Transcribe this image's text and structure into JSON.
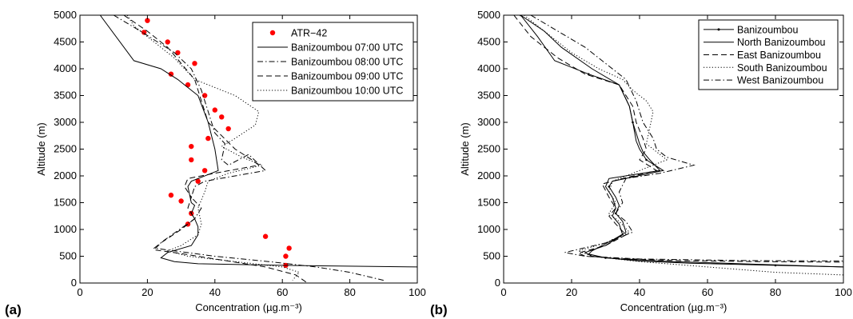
{
  "panels": [
    {
      "label": "(a)"
    },
    {
      "label": "(b)"
    }
  ],
  "chart_data": [
    {
      "type": "line",
      "panel_label": "(a)",
      "xlabel": "Concentration (µg.m⁻³)",
      "ylabel": "Altitude (m)",
      "xlim": [
        0,
        100
      ],
      "ylim": [
        0,
        5000
      ],
      "xticks": [
        0,
        20,
        40,
        60,
        80,
        100
      ],
      "yticks": [
        0,
        500,
        1000,
        1500,
        2000,
        2500,
        3000,
        3500,
        4000,
        4500,
        5000
      ],
      "grid": false,
      "legend_position": "top-right",
      "series": [
        {
          "name": "ATR−42",
          "style": "marker",
          "color": "#ff0000",
          "x": [
            20,
            19,
            26,
            29,
            27,
            34,
            32,
            37,
            40,
            42,
            44,
            38,
            33,
            33,
            37,
            35,
            27,
            30,
            33,
            32,
            55,
            62,
            61,
            61
          ],
          "y": [
            4900,
            4680,
            4500,
            4300,
            3900,
            4100,
            3700,
            3500,
            3230,
            3100,
            2880,
            2700,
            2550,
            2300,
            2100,
            1900,
            1640,
            1530,
            1300,
            1100,
            870,
            650,
            500,
            330
          ]
        },
        {
          "name": "Banizoumbou 07:00 UTC",
          "style": "solid",
          "color": "#000000",
          "x": [
            6,
            16,
            24,
            29,
            31,
            35,
            38,
            40,
            41,
            33,
            32,
            33,
            34,
            33,
            34,
            35,
            35,
            33,
            26,
            24,
            28,
            35,
            60,
            100
          ],
          "y": [
            5000,
            4150,
            4000,
            3800,
            3700,
            3500,
            3000,
            2500,
            2100,
            1900,
            1800,
            1500,
            1450,
            1300,
            1200,
            1050,
            900,
            700,
            570,
            470,
            400,
            360,
            330,
            300
          ]
        },
        {
          "name": "Banizoumbou 08:00 UTC",
          "style": "dashdot",
          "color": "#000000",
          "x": [
            10,
            18,
            28,
            33,
            36,
            38,
            40,
            43,
            42,
            44,
            50,
            55,
            46,
            37,
            34,
            33,
            36,
            34,
            25,
            22,
            28,
            40,
            56,
            70,
            80,
            90
          ],
          "y": [
            5000,
            4700,
            4300,
            4000,
            3600,
            3200,
            2800,
            2600,
            2300,
            2200,
            2400,
            2100,
            2000,
            1900,
            1800,
            1600,
            1400,
            1200,
            800,
            650,
            600,
            500,
            400,
            300,
            200,
            50
          ]
        },
        {
          "name": "Banizoumbou 09:00 UTC",
          "style": "dashed",
          "color": "#000000",
          "x": [
            13,
            20,
            26,
            30,
            34,
            36,
            38,
            42,
            46,
            51,
            53,
            40,
            32,
            31,
            33,
            32,
            34,
            30,
            24,
            22,
            30,
            40,
            55,
            64,
            67
          ],
          "y": [
            5000,
            4700,
            4400,
            4100,
            3800,
            3400,
            3000,
            2750,
            2500,
            2300,
            2200,
            2050,
            1950,
            1800,
            1600,
            1400,
            1200,
            1000,
            750,
            620,
            550,
            450,
            300,
            150,
            20
          ]
        },
        {
          "name": "Banizoumbou 10:00 UTC",
          "style": "dotted",
          "color": "#000000",
          "x": [
            14,
            16,
            22,
            28,
            34,
            46,
            53,
            52,
            46,
            42,
            48,
            54,
            44,
            38,
            37,
            35,
            36,
            35,
            30,
            26,
            32,
            46,
            60,
            65,
            63
          ],
          "y": [
            5000,
            4800,
            4500,
            4200,
            3800,
            3500,
            3200,
            2950,
            2700,
            2550,
            2350,
            2200,
            2050,
            1900,
            1700,
            1400,
            1100,
            900,
            700,
            600,
            500,
            400,
            300,
            200,
            50
          ]
        }
      ]
    },
    {
      "type": "line",
      "panel_label": "(b)",
      "xlabel": "Concentration (µg.m⁻³)",
      "ylabel": "Altitude (m)",
      "xlim": [
        0,
        100
      ],
      "ylim": [
        0,
        5000
      ],
      "xticks": [
        0,
        20,
        40,
        60,
        80,
        100
      ],
      "yticks": [
        0,
        500,
        1000,
        1500,
        2000,
        2500,
        3000,
        3500,
        4000,
        4500,
        5000
      ],
      "grid": false,
      "legend_position": "top-right",
      "series": [
        {
          "name": "Banizoumbou",
          "style": "solid-dot",
          "color": "#000000",
          "x": [
            5,
            10,
            15,
            25,
            34,
            37,
            38,
            39,
            40,
            42,
            47,
            32,
            31,
            33,
            34,
            33,
            35,
            36,
            32,
            26,
            25,
            30,
            40,
            55,
            80,
            100
          ],
          "y": [
            5000,
            4600,
            4150,
            3900,
            3700,
            3300,
            3000,
            2650,
            2500,
            2300,
            2100,
            1900,
            1800,
            1600,
            1450,
            1300,
            1150,
            950,
            800,
            600,
            540,
            470,
            410,
            370,
            330,
            300
          ]
        },
        {
          "name": "North Banizoumbou",
          "style": "solid",
          "color": "#000000",
          "x": [
            5,
            12,
            17,
            26,
            34,
            37,
            38,
            40,
            41,
            43,
            46,
            31,
            30,
            32,
            33,
            32,
            34,
            35,
            30,
            24,
            26,
            34,
            50,
            75,
            100
          ],
          "y": [
            5000,
            4700,
            4400,
            4000,
            3700,
            3300,
            3000,
            2600,
            2450,
            2300,
            2100,
            1950,
            1800,
            1600,
            1400,
            1250,
            1100,
            900,
            700,
            570,
            500,
            450,
            400,
            350,
            300
          ]
        },
        {
          "name": "East Banizoumbou",
          "style": "dashed",
          "color": "#000000",
          "x": [
            3,
            8,
            16,
            24,
            34,
            38,
            39,
            41,
            42,
            40,
            45,
            35,
            29,
            31,
            33,
            31,
            33,
            36,
            30,
            22,
            24,
            34,
            50,
            75,
            100
          ],
          "y": [
            5000,
            4600,
            4200,
            3900,
            3700,
            3300,
            3000,
            2700,
            2500,
            2300,
            2100,
            1950,
            1850,
            1600,
            1400,
            1250,
            1100,
            900,
            700,
            560,
            500,
            460,
            420,
            400,
            390
          ]
        },
        {
          "name": "South Banizoumbou",
          "style": "dotted",
          "color": "#000000",
          "x": [
            6,
            12,
            20,
            28,
            35,
            38,
            42,
            44,
            43,
            42,
            48,
            38,
            32,
            31,
            33,
            31,
            34,
            37,
            30,
            22,
            26,
            40,
            60,
            80,
            100
          ],
          "y": [
            5000,
            4700,
            4300,
            4000,
            3800,
            3600,
            3400,
            3200,
            2900,
            2600,
            2300,
            2050,
            1900,
            1700,
            1500,
            1300,
            1150,
            950,
            750,
            600,
            500,
            400,
            300,
            200,
            150
          ]
        },
        {
          "name": "West Banizoumbou",
          "style": "dashdot",
          "color": "#000000",
          "x": [
            8,
            16,
            24,
            30,
            36,
            39,
            41,
            44,
            45,
            48,
            56,
            46,
            36,
            34,
            35,
            33,
            36,
            38,
            30,
            18,
            24,
            40,
            70,
            100
          ],
          "y": [
            5000,
            4700,
            4400,
            4100,
            3800,
            3400,
            3000,
            2700,
            2500,
            2350,
            2200,
            2050,
            1950,
            1700,
            1500,
            1300,
            1150,
            950,
            750,
            570,
            500,
            450,
            420,
            410
          ]
        }
      ]
    }
  ]
}
